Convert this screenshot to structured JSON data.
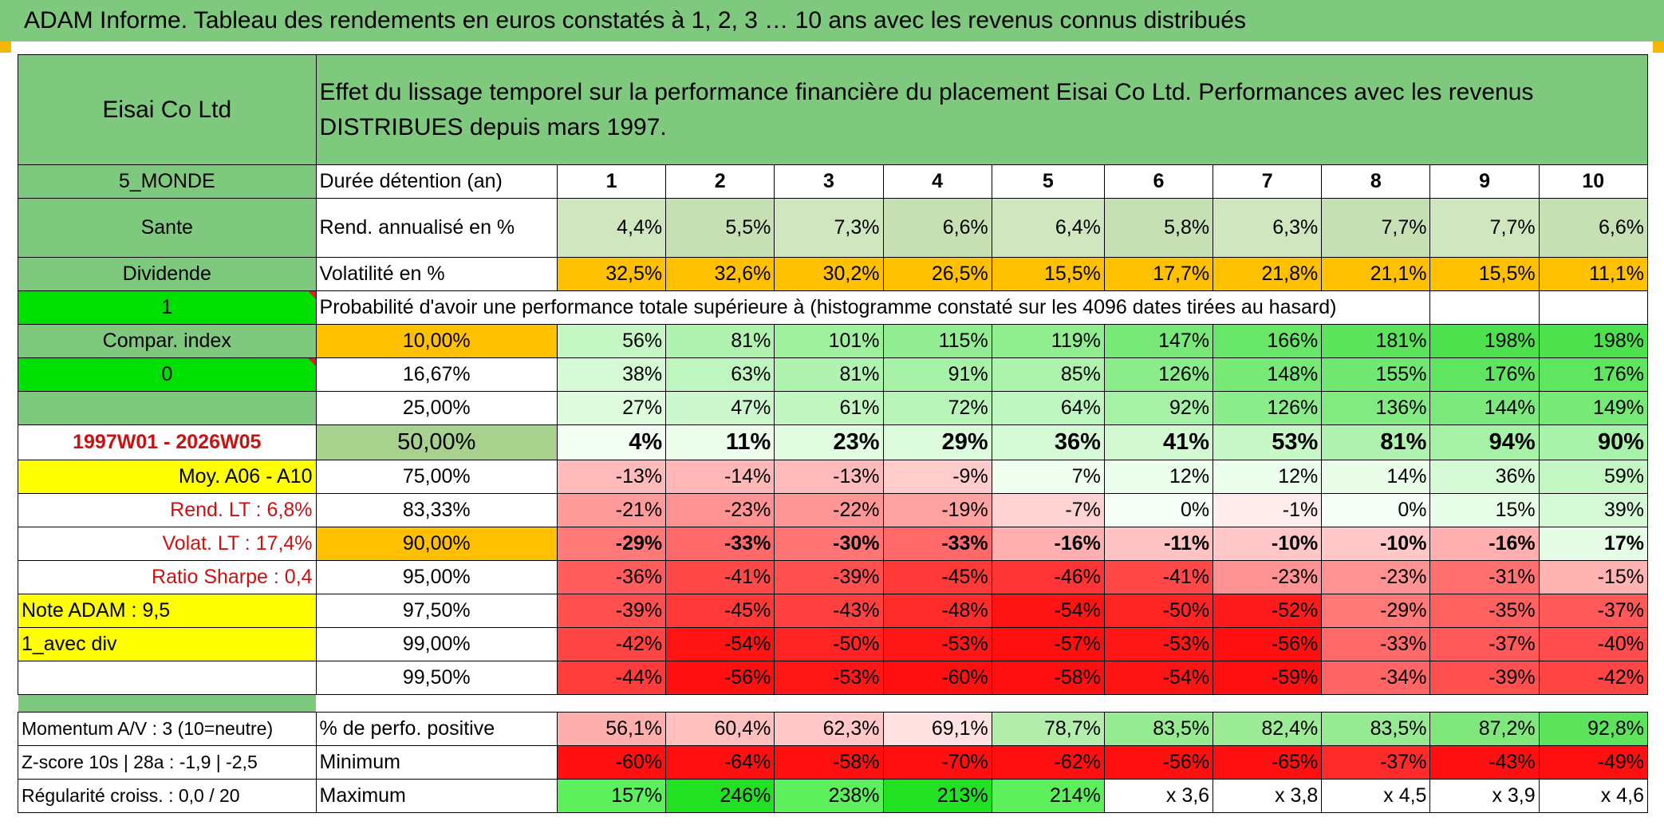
{
  "title": "ADAM Informe. Tableau des rendements en euros constatés à 1, 2, 3 … 10 ans avec les revenus connus distribués",
  "company": "Eisai Co Ltd",
  "description": "Effet du lissage temporel sur la performance financière du placement Eisai Co Ltd. Performances avec les revenus DISTRIBUES depuis mars 1997.",
  "left_labels": {
    "region": "5_MONDE",
    "sector": "Sante",
    "type": "Dividende",
    "flag_value": "1",
    "compar_index": "Compar. index",
    "compar_value": "0",
    "period": "1997W01 - 2026W05",
    "moy": "Moy. A06 - A10",
    "rend_lt": "Rend. LT :   6,8%",
    "volat_lt": "Volat. LT :   17,4%",
    "ratio_sharpe": "Ratio Sharpe :    0,4",
    "note_adam": "Note ADAM : 9,5",
    "avec_div": "1_avec div",
    "momentum": "Momentum A/V : 3 (10=neutre)",
    "zscore": "Z-score 10s | 28a : -1,9 | -2,5",
    "regularite": "Régularité croiss. : 0,0 / 20"
  },
  "row_labels": {
    "duree": "Durée détention (an)",
    "rend": "Rend. annualisé en %",
    "volat": "Volatilité en %",
    "proba": "Probabilité d'avoir une performance totale supérieure à (histogramme constaté sur les 4096 dates tirées au hasard)",
    "perf_pos": "% de perfo. positive",
    "minimum": "Minimum",
    "maximum": "Maximum"
  },
  "years": [
    "1",
    "2",
    "3",
    "4",
    "5",
    "6",
    "7",
    "8",
    "9",
    "10"
  ],
  "rend": [
    "4,4%",
    "5,5%",
    "7,3%",
    "6,6%",
    "6,4%",
    "5,8%",
    "6,3%",
    "7,7%",
    "7,7%",
    "6,6%"
  ],
  "volat": [
    "32,5%",
    "32,6%",
    "30,2%",
    "26,5%",
    "15,5%",
    "17,7%",
    "21,8%",
    "21,1%",
    "15,5%",
    "11,1%"
  ],
  "proba_rows": [
    {
      "pct": "10,00%",
      "values": [
        "56%",
        "81%",
        "101%",
        "115%",
        "119%",
        "147%",
        "166%",
        "181%",
        "198%",
        "198%"
      ]
    },
    {
      "pct": "16,67%",
      "values": [
        "38%",
        "63%",
        "81%",
        "91%",
        "85%",
        "126%",
        "148%",
        "155%",
        "176%",
        "176%"
      ]
    },
    {
      "pct": "25,00%",
      "values": [
        "27%",
        "47%",
        "61%",
        "72%",
        "64%",
        "92%",
        "126%",
        "136%",
        "144%",
        "149%"
      ]
    },
    {
      "pct": "50,00%",
      "values": [
        "4%",
        "11%",
        "23%",
        "29%",
        "36%",
        "41%",
        "53%",
        "81%",
        "94%",
        "90%"
      ]
    },
    {
      "pct": "75,00%",
      "values": [
        "-13%",
        "-14%",
        "-13%",
        "-9%",
        "7%",
        "12%",
        "12%",
        "14%",
        "36%",
        "59%"
      ]
    },
    {
      "pct": "83,33%",
      "values": [
        "-21%",
        "-23%",
        "-22%",
        "-19%",
        "-7%",
        "0%",
        "-1%",
        "0%",
        "15%",
        "39%"
      ]
    },
    {
      "pct": "90,00%",
      "values": [
        "-29%",
        "-33%",
        "-30%",
        "-33%",
        "-16%",
        "-11%",
        "-10%",
        "-10%",
        "-16%",
        "17%"
      ]
    },
    {
      "pct": "95,00%",
      "values": [
        "-36%",
        "-41%",
        "-39%",
        "-45%",
        "-46%",
        "-41%",
        "-23%",
        "-23%",
        "-31%",
        "-15%"
      ]
    },
    {
      "pct": "97,50%",
      "values": [
        "-39%",
        "-45%",
        "-43%",
        "-48%",
        "-54%",
        "-50%",
        "-52%",
        "-29%",
        "-35%",
        "-37%"
      ]
    },
    {
      "pct": "99,00%",
      "values": [
        "-42%",
        "-54%",
        "-50%",
        "-53%",
        "-57%",
        "-53%",
        "-56%",
        "-33%",
        "-37%",
        "-40%"
      ]
    },
    {
      "pct": "99,50%",
      "values": [
        "-44%",
        "-56%",
        "-53%",
        "-60%",
        "-58%",
        "-54%",
        "-59%",
        "-34%",
        "-39%",
        "-42%"
      ]
    }
  ],
  "perf_pos": [
    "56,1%",
    "60,4%",
    "62,3%",
    "69,1%",
    "78,7%",
    "83,5%",
    "82,4%",
    "83,5%",
    "87,2%",
    "92,8%"
  ],
  "minimum": [
    "-60%",
    "-64%",
    "-58%",
    "-70%",
    "-62%",
    "-56%",
    "-65%",
    "-37%",
    "-43%",
    "-49%"
  ],
  "maximum": [
    "157%",
    "246%",
    "238%",
    "213%",
    "214%",
    "x 3,6",
    "x 3,8",
    "x 4,5",
    "x 3,9",
    "x 4,6"
  ],
  "colors": {
    "header_green": "#7fc97f",
    "bright_green": "#00e000",
    "yellow": "#ffff00",
    "orange": "#ffc000",
    "rend_green": "#c6e0b4",
    "label_red": "#cc1111"
  }
}
